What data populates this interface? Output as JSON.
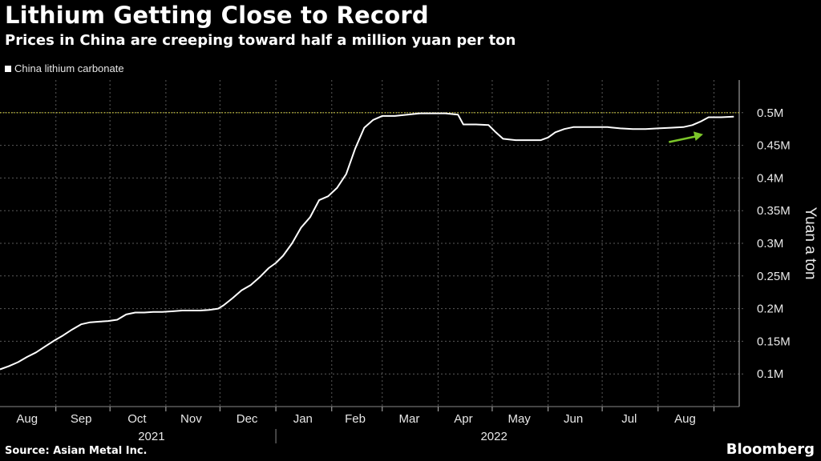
{
  "header": {
    "title": "Lithium Getting Close to Record",
    "subtitle": "Prices in China are creeping toward half a million yuan per ton"
  },
  "footer": {
    "source": "Source: Asian Metal Inc.",
    "brand": "Bloomberg"
  },
  "colors": {
    "background": "#000000",
    "line": "#ffffff",
    "grid": "#5a5a5a",
    "record_line": "#d8d23a",
    "arrow": "#7cc62a"
  },
  "chart_data": {
    "type": "line",
    "title": "Lithium Getting Close to Record",
    "subtitle": "Prices in China are creeping toward half a million yuan per ton",
    "ylabel": "Yuan a ton",
    "ylim": [
      50000,
      550000
    ],
    "yticks": [
      100000,
      150000,
      200000,
      250000,
      300000,
      350000,
      400000,
      450000,
      500000
    ],
    "ytick_labels": [
      "0.1M",
      "0.15M",
      "0.2M",
      "0.25M",
      "0.3M",
      "0.35M",
      "0.4M",
      "0.45M",
      "0.5M"
    ],
    "y_axis_side": "right",
    "grid": true,
    "legend_position": "top-left",
    "xlim": [
      "2021-08-01",
      "2022-09-15"
    ],
    "month_labels": [
      {
        "label": "Aug",
        "date": "2021-08-16"
      },
      {
        "label": "Sep",
        "date": "2021-09-15"
      },
      {
        "label": "Oct",
        "date": "2021-10-16"
      },
      {
        "label": "Nov",
        "date": "2021-11-15"
      },
      {
        "label": "Dec",
        "date": "2021-12-16"
      },
      {
        "label": "Jan",
        "date": "2022-01-16"
      },
      {
        "label": "Feb",
        "date": "2022-02-14"
      },
      {
        "label": "Mar",
        "date": "2022-03-16"
      },
      {
        "label": "Apr",
        "date": "2022-04-15"
      },
      {
        "label": "May",
        "date": "2022-05-16"
      },
      {
        "label": "Jun",
        "date": "2022-06-15"
      },
      {
        "label": "Jul",
        "date": "2022-07-16"
      },
      {
        "label": "Aug",
        "date": "2022-08-16"
      }
    ],
    "year_labels": [
      {
        "label": "2021",
        "date": "2021-10-24"
      },
      {
        "label": "2022",
        "date": "2022-05-02"
      }
    ],
    "year_divider": "2022-01-01",
    "reference_line": {
      "y": 500000,
      "style": "dotted"
    },
    "annotation_arrow": {
      "from": {
        "x": "2022-08-07",
        "y": 455000
      },
      "to": {
        "x": "2022-08-26",
        "y": 467000
      }
    },
    "series": [
      {
        "name": "China lithium carbonate",
        "color": "#ffffff",
        "points": [
          [
            "2021-08-01",
            107000
          ],
          [
            "2021-08-06",
            112000
          ],
          [
            "2021-08-11",
            118000
          ],
          [
            "2021-08-16",
            126000
          ],
          [
            "2021-08-21",
            133000
          ],
          [
            "2021-08-26",
            142000
          ],
          [
            "2021-08-31",
            151000
          ],
          [
            "2021-09-05",
            159000
          ],
          [
            "2021-09-10",
            168000
          ],
          [
            "2021-09-15",
            176000
          ],
          [
            "2021-09-20",
            179000
          ],
          [
            "2021-09-25",
            180000
          ],
          [
            "2021-09-30",
            181000
          ],
          [
            "2021-10-05",
            183000
          ],
          [
            "2021-10-10",
            191000
          ],
          [
            "2021-10-15",
            194000
          ],
          [
            "2021-10-20",
            194000
          ],
          [
            "2021-10-25",
            195000
          ],
          [
            "2021-10-30",
            195000
          ],
          [
            "2021-11-05",
            196000
          ],
          [
            "2021-11-10",
            197000
          ],
          [
            "2021-11-15",
            197000
          ],
          [
            "2021-11-20",
            197000
          ],
          [
            "2021-11-25",
            198000
          ],
          [
            "2021-11-30",
            200000
          ],
          [
            "2021-12-03",
            205000
          ],
          [
            "2021-12-08",
            216000
          ],
          [
            "2021-12-13",
            228000
          ],
          [
            "2021-12-18",
            236000
          ],
          [
            "2021-12-23",
            248000
          ],
          [
            "2021-12-28",
            262000
          ],
          [
            "2022-01-01",
            270000
          ],
          [
            "2022-01-05",
            281000
          ],
          [
            "2022-01-10",
            300000
          ],
          [
            "2022-01-15",
            324000
          ],
          [
            "2022-01-20",
            340000
          ],
          [
            "2022-01-25",
            366000
          ],
          [
            "2022-01-30",
            372000
          ],
          [
            "2022-02-04",
            385000
          ],
          [
            "2022-02-09",
            406000
          ],
          [
            "2022-02-14",
            445000
          ],
          [
            "2022-02-19",
            477000
          ],
          [
            "2022-02-24",
            489000
          ],
          [
            "2022-03-01",
            495000
          ],
          [
            "2022-03-08",
            495000
          ],
          [
            "2022-03-15",
            497000
          ],
          [
            "2022-03-22",
            499000
          ],
          [
            "2022-03-29",
            499000
          ],
          [
            "2022-04-05",
            499000
          ],
          [
            "2022-04-12",
            497000
          ],
          [
            "2022-04-15",
            482000
          ],
          [
            "2022-04-22",
            482000
          ],
          [
            "2022-04-29",
            481000
          ],
          [
            "2022-05-03",
            470000
          ],
          [
            "2022-05-07",
            460000
          ],
          [
            "2022-05-14",
            458000
          ],
          [
            "2022-05-21",
            458000
          ],
          [
            "2022-05-28",
            458000
          ],
          [
            "2022-06-01",
            462000
          ],
          [
            "2022-06-05",
            470000
          ],
          [
            "2022-06-10",
            475000
          ],
          [
            "2022-06-15",
            478000
          ],
          [
            "2022-06-20",
            478000
          ],
          [
            "2022-06-27",
            478000
          ],
          [
            "2022-07-04",
            478000
          ],
          [
            "2022-07-11",
            476000
          ],
          [
            "2022-07-18",
            475000
          ],
          [
            "2022-07-25",
            475000
          ],
          [
            "2022-08-01",
            476000
          ],
          [
            "2022-08-08",
            477000
          ],
          [
            "2022-08-15",
            478000
          ],
          [
            "2022-08-20",
            481000
          ],
          [
            "2022-08-25",
            487000
          ],
          [
            "2022-08-29",
            493000
          ],
          [
            "2022-09-05",
            493000
          ],
          [
            "2022-09-12",
            494000
          ]
        ]
      }
    ]
  }
}
